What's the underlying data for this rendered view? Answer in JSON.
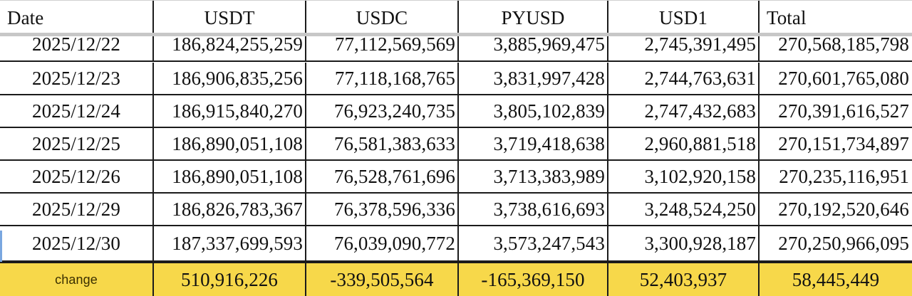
{
  "table": {
    "headers": [
      "Date",
      "USDT",
      "USDC",
      "PYUSD",
      "USD1",
      "Total"
    ],
    "rows": [
      [
        "2025/12/22",
        "186,824,255,259",
        "77,112,569,569",
        "3,885,969,475",
        "2,745,391,495",
        "270,568,185,798"
      ],
      [
        "2025/12/23",
        "186,906,835,256",
        "77,118,168,765",
        "3,831,997,428",
        "2,744,763,631",
        "270,601,765,080"
      ],
      [
        "2025/12/24",
        "186,915,840,270",
        "76,923,240,735",
        "3,805,102,839",
        "2,747,432,683",
        "270,391,616,527"
      ],
      [
        "2025/12/25",
        "186,890,051,108",
        "76,581,383,633",
        "3,719,418,638",
        "2,960,881,518",
        "270,151,734,897"
      ],
      [
        "2025/12/26",
        "186,890,051,108",
        "76,528,761,696",
        "3,713,383,989",
        "3,102,920,158",
        "270,235,116,951"
      ],
      [
        "2025/12/29",
        "186,826,783,367",
        "76,378,596,336",
        "3,738,616,693",
        "3,248,524,250",
        "270,192,520,646"
      ],
      [
        "2025/12/30",
        "187,337,699,593",
        "76,039,090,772",
        "3,573,247,543",
        "3,300,928,187",
        "270,250,966,095"
      ]
    ],
    "change": [
      "change",
      "510,916,226",
      "-339,505,564",
      "-165,369,150",
      "52,403,937",
      "58,445,449"
    ]
  },
  "colors": {
    "change_row_fill": "#f7d84a",
    "grid_line": "#1b1b1b",
    "freeze_pane_line": "#c7c7c7",
    "selected_row_marker": "#7aa7e0"
  }
}
